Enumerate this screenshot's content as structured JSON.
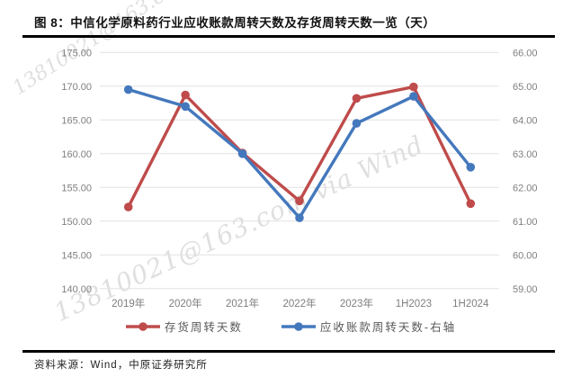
{
  "title": "图 8：中信化学原料药行业应收账款周转天数及存货周转天数一览（天）",
  "watermark": {
    "text": "13810021@163.com via Wind"
  },
  "source": "资料来源：Wind，中原证券研究所",
  "colors": {
    "red": "#bf4b4b",
    "blue": "#4478bd",
    "gridline": "#e2e2e2",
    "axis_text": "#7f7f7f",
    "legend_text": "#595959"
  },
  "chart_data": {
    "type": "line",
    "title": "中信化学原料药行业应收账款周转天数及存货周转天数一览（天）",
    "categories": [
      "2019年",
      "2020年",
      "2021年",
      "2022年",
      "2023年",
      "1H2023",
      "1H2024"
    ],
    "left_axis": {
      "min": 140,
      "max": 175,
      "ticks": [
        "175.00",
        "170.00",
        "165.00",
        "160.00",
        "155.00",
        "150.00",
        "145.00",
        "140.00"
      ]
    },
    "right_axis": {
      "min": 59,
      "max": 66,
      "ticks": [
        "66.00",
        "65.00",
        "64.00",
        "63.00",
        "62.00",
        "61.00",
        "60.00",
        "59.00"
      ]
    },
    "series": [
      {
        "id": "inventory-turnover-days",
        "name": "存货周转天数",
        "axis": "left",
        "color": "#bf4b4b",
        "values": [
          152.1,
          168.7,
          160.1,
          153.0,
          168.2,
          169.9,
          152.6
        ]
      },
      {
        "id": "receivables-turnover-days",
        "name": "应收账款周转天数-右轴",
        "axis": "right",
        "color": "#4478bd",
        "values": [
          64.9,
          64.4,
          63.0,
          61.1,
          63.9,
          64.7,
          62.6
        ]
      }
    ],
    "grid": "horizontal",
    "legend_position": "bottom"
  }
}
